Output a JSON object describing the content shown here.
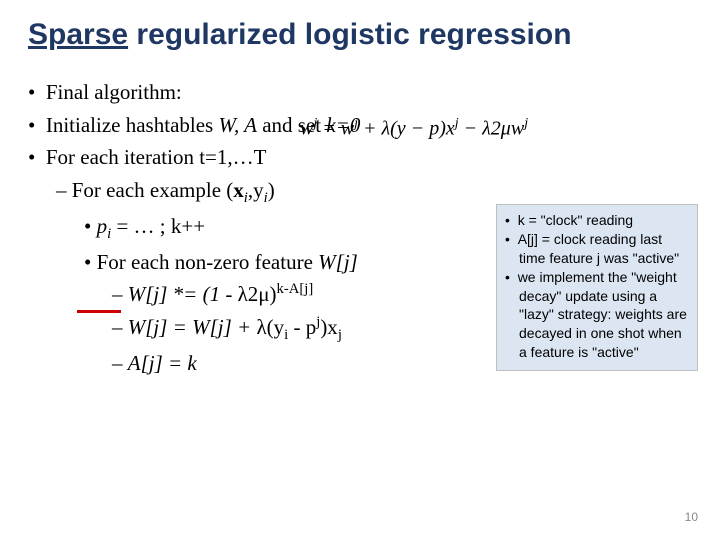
{
  "slide": {
    "title_underlined": "Sparse",
    "title_rest": " regularized logistic regression",
    "equation": "w<sup>j</sup> = w<sup>j</sup> + λ(y − p)x<sup>j</sup> − λ2μw<sup>j</sup>",
    "bullets": {
      "b1": "Final algorithm:",
      "b2_pre": "Initialize hashtables ",
      "b2_vars": "W, A",
      "b2_post": "  and set ",
      "b2_k": "k=0",
      "b3": "For each iteration t=1,…T",
      "b4_pre": "For each example (",
      "b4_x": "x",
      "b4_i1": "i",
      "b4_comma": ",y",
      "b4_i2": "i",
      "b4_close": ")",
      "b5": "p",
      "b5_i": "i",
      "b5_rest": " = … ; k++",
      "b6_pre": "For each non-zero feature ",
      "b6_w": "W[j]",
      "b7_pre": "W[j]  *= (1 - ",
      "b7_l": "λ2μ)",
      "b7_exp": "k-A[j]",
      "b8_pre": "W[j] =  W[j] + ",
      "b8_l": "λ(y",
      "b8_i": "i",
      "b8_mid": " - p",
      "b8_j": "j",
      "b8_end": ")x",
      "b8_jj": "j",
      "b9": "A[j] = k"
    },
    "note": {
      "n1": "k = \"clock\" reading",
      "n2": "A[j] = clock reading last time feature j was \"active\"",
      "n3": "we implement the \"weight decay\" update using a \"lazy\" strategy: weights are decayed in one shot when a feature is \"active\""
    },
    "page_number": "10",
    "colors": {
      "title": "#1f3763",
      "note_bg": "#dce6f2",
      "underline": "#cc0000",
      "pagenum": "#898989"
    }
  }
}
